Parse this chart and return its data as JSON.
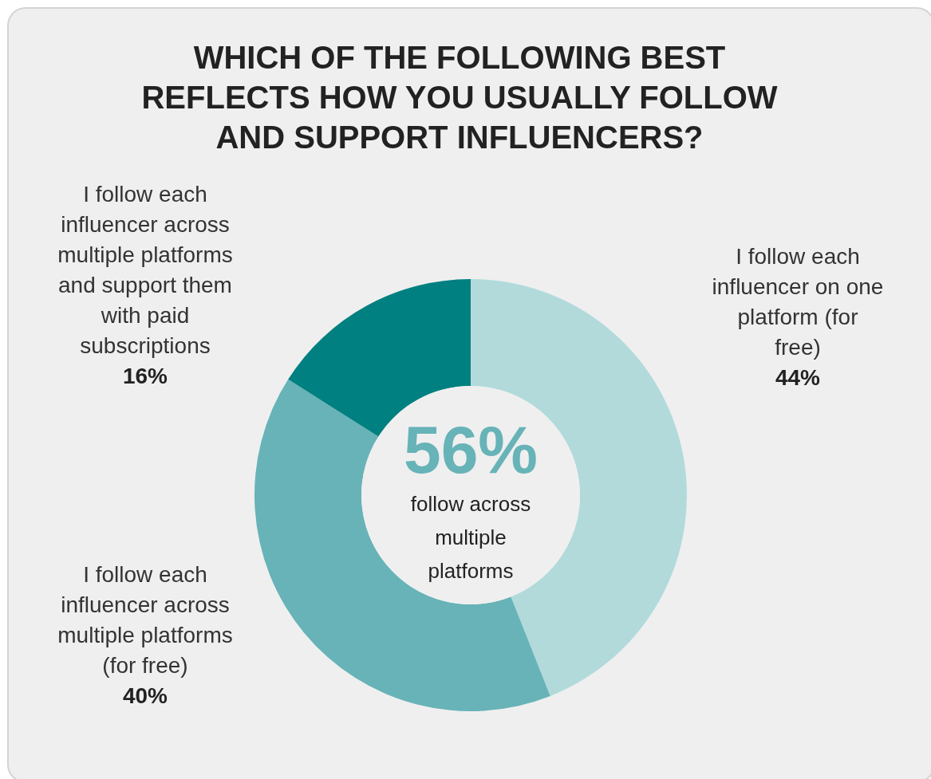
{
  "chart_data": {
    "type": "donut",
    "title": "WHICH OF THE FOLLOWING BEST REFLECTS HOW YOU USUALLY FOLLOW AND SUPPORT INFLUENCERS?",
    "categories": [
      "I follow each influencer on one platform (for free)",
      "I follow each influencer across multiple platforms (for free)",
      "I follow each influencer across multiple platforms and support them with paid subscriptions"
    ],
    "values": [
      44,
      40,
      16
    ],
    "value_labels": [
      "44%",
      "40%",
      "16%"
    ],
    "colors": [
      "#b2dadb",
      "#67b3b8",
      "#008080"
    ],
    "annotations": [
      "56%",
      "follow across multiple platforms"
    ]
  }
}
